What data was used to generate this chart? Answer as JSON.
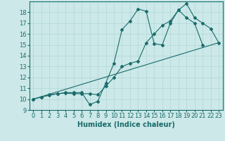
{
  "xlabel": "Humidex (Indice chaleur)",
  "bg_color": "#cce8e8",
  "line_color": "#1a6b6b",
  "grid_color": "#b0d8d8",
  "xlim": [
    -0.5,
    23.5
  ],
  "ylim": [
    9,
    19
  ],
  "xticks": [
    0,
    1,
    2,
    3,
    4,
    5,
    6,
    7,
    8,
    9,
    10,
    11,
    12,
    13,
    14,
    15,
    16,
    17,
    18,
    19,
    20,
    21,
    22,
    23
  ],
  "yticks": [
    9,
    10,
    11,
    12,
    13,
    14,
    15,
    16,
    17,
    18
  ],
  "line1_x": [
    0,
    1,
    2,
    3,
    4,
    5,
    6,
    7,
    8,
    9,
    10,
    11,
    12,
    13,
    14,
    15,
    16,
    17,
    18,
    19,
    20,
    21
  ],
  "line1_y": [
    10.0,
    10.2,
    10.4,
    10.5,
    10.6,
    10.6,
    10.6,
    9.5,
    9.8,
    11.5,
    13.3,
    16.4,
    17.2,
    18.3,
    18.1,
    15.1,
    15.0,
    17.0,
    18.2,
    17.5,
    17.0,
    15.0
  ],
  "line2_x": [
    0,
    1,
    2,
    3,
    4,
    5,
    6,
    7,
    8,
    9,
    10,
    11,
    12,
    13,
    14,
    15,
    16,
    17,
    18,
    19,
    20,
    21,
    22,
    23
  ],
  "line2_y": [
    10.0,
    10.2,
    10.35,
    10.5,
    10.55,
    10.5,
    10.5,
    10.5,
    10.4,
    11.2,
    12.0,
    13.0,
    13.3,
    13.5,
    15.2,
    16.0,
    16.8,
    17.2,
    18.2,
    18.8,
    17.5,
    17.0,
    16.5,
    15.2
  ],
  "line3_x": [
    0,
    23
  ],
  "line3_y": [
    10.0,
    15.2
  ],
  "fontsize_label": 7,
  "fontsize_tick": 6
}
